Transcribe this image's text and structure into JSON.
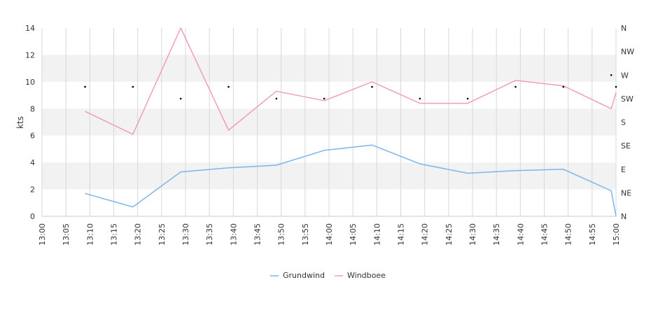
{
  "chart_data": {
    "type": "line",
    "ylabel": "kts",
    "ylim": [
      0,
      14
    ],
    "yticks": [
      "0",
      "2",
      "4",
      "6",
      "8",
      "10",
      "12",
      "14"
    ],
    "xlim": [
      "13:00",
      "15:00"
    ],
    "xticks": [
      "13:00",
      "13:05",
      "13:10",
      "13:15",
      "13:20",
      "13:25",
      "13:30",
      "13:35",
      "13:40",
      "13:45",
      "13:50",
      "13:55",
      "14:00",
      "14:05",
      "14:10",
      "14:15",
      "14:20",
      "14:25",
      "14:30",
      "14:35",
      "14:40",
      "14:45",
      "14:50",
      "14:55",
      "15:00"
    ],
    "y2ticks": [
      "N",
      "NE",
      "E",
      "SE",
      "S",
      "SW",
      "W",
      "NW",
      "N"
    ],
    "grid": "alternating horizontal bands with vertical gridlines",
    "legend_position": "bottom-center",
    "colors": {
      "Grundwind": "#7cb5ec",
      "Windboee": "#f29bc3",
      "direction": "#000000",
      "band": "#f2f2f2",
      "grid": "#d8d8d8"
    },
    "series": [
      {
        "name": "Grundwind",
        "x": [
          "13:09",
          "13:19",
          "13:29",
          "13:39",
          "13:49",
          "13:59",
          "14:09",
          "14:19",
          "14:29",
          "14:39",
          "14:49",
          "14:59",
          "15:00"
        ],
        "values": [
          1.7,
          0.7,
          3.3,
          3.6,
          3.8,
          4.9,
          5.3,
          3.9,
          3.2,
          3.4,
          3.5,
          1.9,
          0.0
        ]
      },
      {
        "name": "Windboee",
        "x": [
          "13:09",
          "13:19",
          "13:29",
          "13:39",
          "13:49",
          "13:59",
          "14:09",
          "14:19",
          "14:29",
          "14:39",
          "14:49",
          "14:59",
          "15:00"
        ],
        "values": [
          7.8,
          6.1,
          14.0,
          6.4,
          9.3,
          8.6,
          10.0,
          8.4,
          8.4,
          10.1,
          9.7,
          8.0,
          9.2
        ]
      }
    ],
    "direction": {
      "x": [
        "13:09",
        "13:19",
        "13:29",
        "13:39",
        "13:49",
        "13:59",
        "14:09",
        "14:19",
        "14:29",
        "14:39",
        "14:49",
        "14:59",
        "15:00"
      ],
      "values": [
        "WSW",
        "WSW",
        "SW",
        "WSW",
        "SW",
        "SW",
        "WSW",
        "SW",
        "SW",
        "WSW",
        "WSW",
        "W",
        "WSW"
      ]
    }
  }
}
